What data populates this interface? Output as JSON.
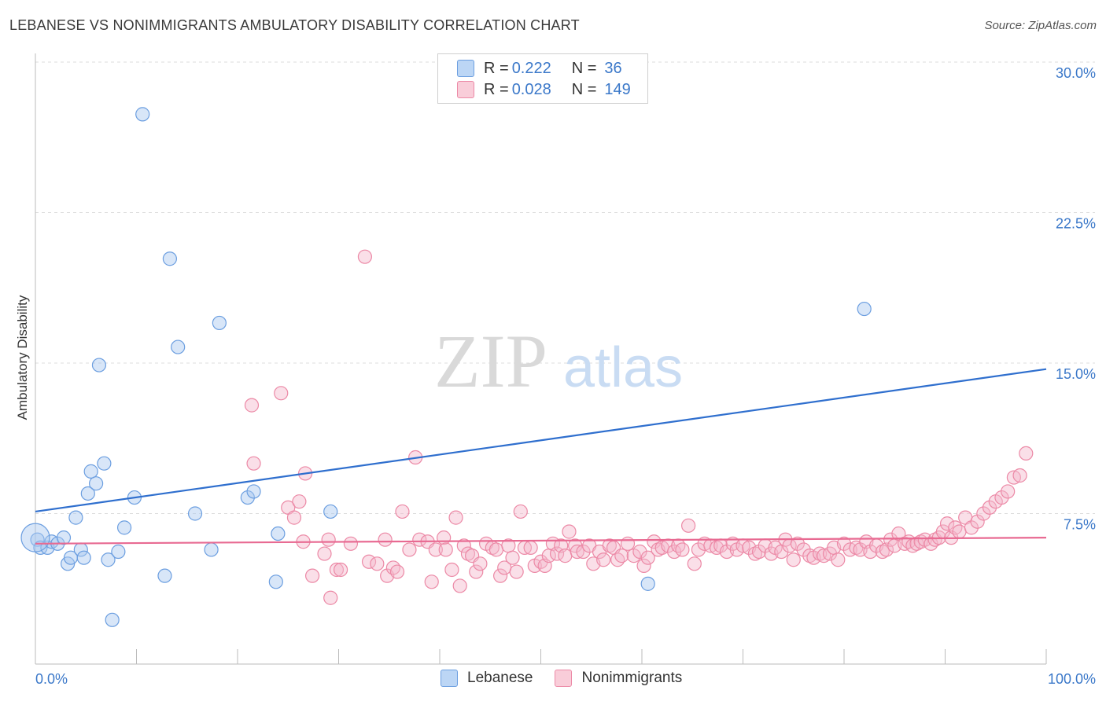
{
  "title": "LEBANESE VS NONIMMIGRANTS AMBULATORY DISABILITY CORRELATION CHART",
  "source": "Source: ZipAtlas.com",
  "watermark": {
    "zip": "ZIP",
    "atlas": "atlas"
  },
  "legend": {
    "items": [
      {
        "r_label": "R =",
        "r_value": "0.222",
        "n_label": "N =",
        "n_value": "36",
        "color": "#a8c8f0"
      },
      {
        "r_label": "R =",
        "r_value": "0.028",
        "n_label": "N =",
        "n_value": "149",
        "color": "#f5b8cb"
      }
    ]
  },
  "bottom_legend": [
    "Lebanese",
    "Nonimmigrants"
  ],
  "chart_data": {
    "type": "scatter",
    "title": "LEBANESE VS NONIMMIGRANTS AMBULATORY DISABILITY CORRELATION CHART",
    "xlabel": "",
    "ylabel": "Ambulatory Disability",
    "xlim": [
      0,
      100
    ],
    "ylim": [
      0,
      30
    ],
    "x_tick_labels": [
      "0.0%",
      "100.0%"
    ],
    "y_ticks": [
      7.5,
      15.0,
      22.5,
      30.0
    ],
    "y_tick_labels": [
      "7.5%",
      "15.0%",
      "22.5%",
      "30.0%"
    ],
    "grid": true,
    "legend_position": "top-center",
    "series": [
      {
        "name": "Lebanese",
        "color": "#a8c8f0",
        "stroke": "#6b9ee0",
        "trend": {
          "x": [
            0,
            100
          ],
          "y": [
            7.6,
            14.7
          ],
          "color": "#2f6fce"
        },
        "points": [
          [
            0.2,
            6.2
          ],
          [
            0.5,
            5.8
          ],
          [
            1.2,
            5.8
          ],
          [
            1.6,
            6.1
          ],
          [
            2.2,
            6.0
          ],
          [
            2.8,
            6.3
          ],
          [
            3.2,
            5.0
          ],
          [
            3.5,
            5.3
          ],
          [
            4.0,
            7.3
          ],
          [
            4.5,
            5.7
          ],
          [
            4.8,
            5.3
          ],
          [
            5.2,
            8.5
          ],
          [
            5.5,
            9.6
          ],
          [
            6.0,
            9.0
          ],
          [
            6.3,
            14.9
          ],
          [
            6.8,
            10.0
          ],
          [
            7.2,
            5.2
          ],
          [
            7.6,
            2.2
          ],
          [
            8.2,
            5.6
          ],
          [
            8.8,
            6.8
          ],
          [
            9.8,
            8.3
          ],
          [
            10.6,
            27.4
          ],
          [
            12.8,
            4.4
          ],
          [
            13.3,
            20.2
          ],
          [
            14.1,
            15.8
          ],
          [
            15.8,
            7.5
          ],
          [
            17.4,
            5.7
          ],
          [
            18.2,
            17.0
          ],
          [
            21.0,
            8.3
          ],
          [
            21.6,
            8.6
          ],
          [
            23.8,
            4.1
          ],
          [
            24.0,
            6.5
          ],
          [
            29.2,
            7.6
          ],
          [
            60.6,
            4.0
          ],
          [
            82.0,
            17.7
          ],
          [
            0.0,
            6.3
          ]
        ]
      },
      {
        "name": "Nonimmigrants",
        "color": "#f5b8cb",
        "stroke": "#ec89a6",
        "trend": {
          "x": [
            0,
            100
          ],
          "y": [
            6.0,
            6.3
          ],
          "color": "#e86a92"
        },
        "points": [
          [
            21.4,
            12.9
          ],
          [
            21.6,
            10.0
          ],
          [
            24.3,
            13.5
          ],
          [
            25.0,
            7.8
          ],
          [
            25.6,
            7.3
          ],
          [
            26.1,
            8.1
          ],
          [
            26.5,
            6.1
          ],
          [
            26.7,
            9.5
          ],
          [
            27.4,
            4.4
          ],
          [
            28.6,
            5.5
          ],
          [
            29.0,
            6.2
          ],
          [
            29.2,
            3.3
          ],
          [
            29.8,
            4.7
          ],
          [
            30.2,
            4.7
          ],
          [
            31.2,
            6.0
          ],
          [
            32.6,
            20.3
          ],
          [
            33.0,
            5.1
          ],
          [
            33.8,
            5.0
          ],
          [
            34.6,
            6.2
          ],
          [
            34.8,
            4.4
          ],
          [
            35.4,
            4.8
          ],
          [
            35.8,
            4.6
          ],
          [
            36.3,
            7.6
          ],
          [
            37.0,
            5.7
          ],
          [
            37.6,
            10.3
          ],
          [
            38.0,
            6.2
          ],
          [
            38.8,
            6.1
          ],
          [
            39.2,
            4.1
          ],
          [
            39.6,
            5.7
          ],
          [
            40.4,
            6.3
          ],
          [
            40.6,
            5.7
          ],
          [
            41.2,
            4.7
          ],
          [
            41.6,
            7.3
          ],
          [
            42.0,
            3.9
          ],
          [
            42.4,
            5.9
          ],
          [
            42.8,
            5.5
          ],
          [
            43.2,
            5.4
          ],
          [
            43.6,
            4.6
          ],
          [
            44.0,
            5.0
          ],
          [
            44.6,
            6.0
          ],
          [
            45.2,
            5.8
          ],
          [
            45.6,
            5.7
          ],
          [
            46.0,
            4.4
          ],
          [
            46.4,
            4.8
          ],
          [
            46.8,
            5.9
          ],
          [
            47.2,
            5.3
          ],
          [
            47.6,
            4.6
          ],
          [
            48.0,
            7.6
          ],
          [
            48.4,
            5.8
          ],
          [
            49.0,
            5.8
          ],
          [
            49.4,
            4.9
          ],
          [
            50.0,
            5.1
          ],
          [
            50.4,
            4.9
          ],
          [
            50.8,
            5.4
          ],
          [
            51.2,
            6.0
          ],
          [
            51.6,
            5.5
          ],
          [
            52.0,
            5.9
          ],
          [
            52.4,
            5.4
          ],
          [
            52.8,
            6.6
          ],
          [
            53.4,
            5.9
          ],
          [
            53.6,
            5.6
          ],
          [
            54.2,
            5.6
          ],
          [
            54.8,
            5.9
          ],
          [
            55.2,
            5.0
          ],
          [
            55.8,
            5.6
          ],
          [
            56.2,
            5.2
          ],
          [
            56.8,
            5.9
          ],
          [
            57.2,
            5.8
          ],
          [
            57.6,
            5.2
          ],
          [
            58.0,
            5.4
          ],
          [
            58.6,
            6.0
          ],
          [
            59.2,
            5.4
          ],
          [
            59.8,
            5.6
          ],
          [
            60.2,
            4.9
          ],
          [
            60.6,
            5.3
          ],
          [
            61.2,
            6.1
          ],
          [
            61.6,
            5.7
          ],
          [
            62.0,
            5.8
          ],
          [
            62.6,
            5.9
          ],
          [
            63.2,
            5.6
          ],
          [
            63.6,
            5.9
          ],
          [
            64.0,
            5.7
          ],
          [
            64.6,
            6.9
          ],
          [
            65.2,
            5.0
          ],
          [
            65.6,
            5.7
          ],
          [
            66.2,
            6.0
          ],
          [
            66.8,
            5.9
          ],
          [
            67.4,
            5.8
          ],
          [
            67.8,
            5.9
          ],
          [
            68.4,
            5.6
          ],
          [
            69.0,
            6.0
          ],
          [
            69.4,
            5.7
          ],
          [
            70.0,
            5.9
          ],
          [
            70.6,
            5.8
          ],
          [
            71.2,
            5.5
          ],
          [
            71.6,
            5.6
          ],
          [
            72.2,
            5.9
          ],
          [
            72.8,
            5.5
          ],
          [
            73.2,
            5.8
          ],
          [
            73.8,
            5.6
          ],
          [
            74.2,
            6.2
          ],
          [
            74.6,
            5.9
          ],
          [
            75.0,
            5.2
          ],
          [
            75.4,
            6.0
          ],
          [
            76.0,
            5.7
          ],
          [
            76.6,
            5.4
          ],
          [
            77.0,
            5.3
          ],
          [
            77.6,
            5.5
          ],
          [
            78.0,
            5.4
          ],
          [
            78.6,
            5.5
          ],
          [
            79.0,
            5.8
          ],
          [
            79.4,
            5.2
          ],
          [
            80.0,
            6.0
          ],
          [
            80.6,
            5.7
          ],
          [
            81.2,
            5.8
          ],
          [
            81.6,
            5.7
          ],
          [
            82.2,
            6.1
          ],
          [
            82.6,
            5.6
          ],
          [
            83.2,
            5.9
          ],
          [
            83.8,
            5.6
          ],
          [
            84.2,
            5.7
          ],
          [
            84.6,
            6.2
          ],
          [
            85.0,
            5.9
          ],
          [
            85.4,
            6.5
          ],
          [
            86.0,
            6.0
          ],
          [
            86.4,
            6.1
          ],
          [
            86.8,
            5.9
          ],
          [
            87.2,
            6.0
          ],
          [
            87.6,
            6.1
          ],
          [
            88.0,
            6.2
          ],
          [
            88.6,
            6.0
          ],
          [
            89.0,
            6.2
          ],
          [
            89.4,
            6.3
          ],
          [
            89.8,
            6.6
          ],
          [
            90.2,
            7.0
          ],
          [
            90.6,
            6.3
          ],
          [
            91.0,
            6.8
          ],
          [
            91.4,
            6.6
          ],
          [
            92.0,
            7.3
          ],
          [
            92.6,
            6.8
          ],
          [
            93.2,
            7.1
          ],
          [
            93.8,
            7.5
          ],
          [
            94.4,
            7.8
          ],
          [
            95.0,
            8.1
          ],
          [
            95.6,
            8.3
          ],
          [
            96.2,
            8.6
          ],
          [
            96.8,
            9.3
          ],
          [
            97.4,
            9.4
          ],
          [
            98.0,
            10.5
          ]
        ]
      }
    ]
  }
}
